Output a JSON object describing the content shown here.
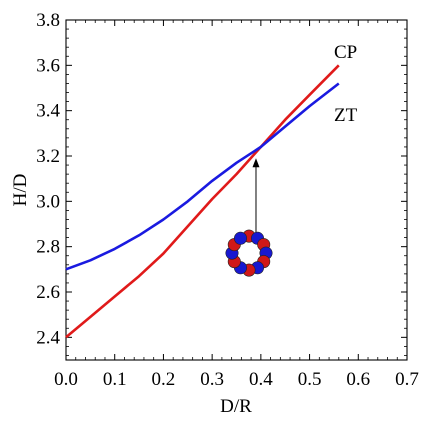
{
  "chart_data": {
    "type": "line",
    "xlabel": "D/R",
    "ylabel": "H/D",
    "xlim": [
      0.0,
      0.7
    ],
    "ylim": [
      2.3,
      3.8
    ],
    "x_ticks": [
      "0.0",
      "0.1",
      "0.2",
      "0.3",
      "0.4",
      "0.5",
      "0.6",
      "0.7"
    ],
    "y_ticks": [
      "2.4",
      "2.6",
      "2.8",
      "3.0",
      "3.2",
      "3.4",
      "3.6",
      "3.8"
    ],
    "grid": false,
    "series": [
      {
        "name": "CP",
        "color": "#e01a1a",
        "x": [
          0.0,
          0.05,
          0.1,
          0.15,
          0.2,
          0.25,
          0.3,
          0.35,
          0.4,
          0.45,
          0.5,
          0.56
        ],
        "y": [
          2.4,
          2.49,
          2.58,
          2.67,
          2.77,
          2.89,
          3.01,
          3.12,
          3.24,
          3.36,
          3.47,
          3.6
        ]
      },
      {
        "name": "ZT",
        "color": "#1a1ae0",
        "x": [
          0.0,
          0.05,
          0.1,
          0.15,
          0.2,
          0.25,
          0.3,
          0.35,
          0.4,
          0.45,
          0.5,
          0.56
        ],
        "y": [
          2.7,
          2.74,
          2.79,
          2.85,
          2.92,
          3.0,
          3.09,
          3.17,
          3.24,
          3.33,
          3.42,
          3.52
        ]
      }
    ],
    "annotation": {
      "type": "arrow",
      "x": 0.39,
      "y_from": 2.86,
      "y_to": 3.19,
      "inset": "ring-of-spheres-image"
    }
  }
}
